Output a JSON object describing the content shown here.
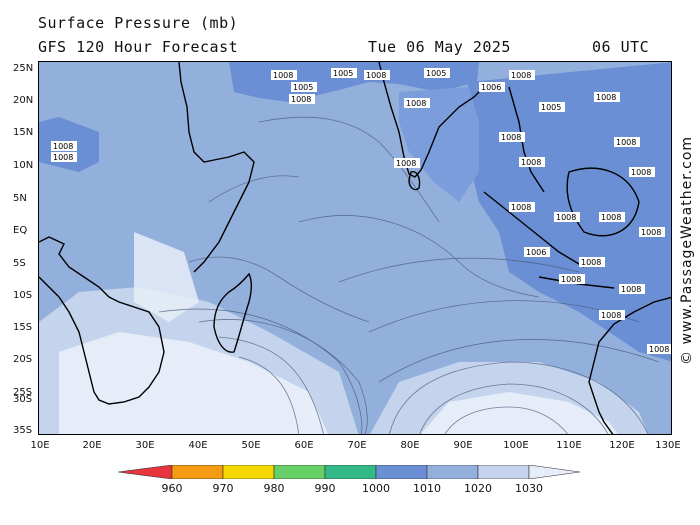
{
  "header": {
    "title": "Surface Pressure (mb)",
    "subtitle": "GFS 120 Hour Forecast",
    "date": "Tue 06 May 2025",
    "time": "06 UTC"
  },
  "watermark": "© www.PassageWeather.com",
  "lat_labels": [
    "25N",
    "20N",
    "15N",
    "10N",
    "5N",
    "EQ",
    "5S",
    "10S",
    "15S",
    "20S",
    "25S",
    "30S",
    "35S"
  ],
  "lon_labels": [
    "10E",
    "20E",
    "30E",
    "40E",
    "50E",
    "60E",
    "70E",
    "80E",
    "90E",
    "100E",
    "110E",
    "120E",
    "130E"
  ],
  "legend": {
    "labels": [
      "960",
      "970",
      "980",
      "990",
      "1000",
      "1010",
      "1020",
      "1030"
    ],
    "colors": [
      "#e8343c",
      "#f39c12",
      "#f5d800",
      "#66d066",
      "#33b888",
      "#6a8fd4",
      "#93b0dc",
      "#c4d4ec",
      "#e7edf8"
    ]
  },
  "colors": {
    "low_1005": "#6a8fd4",
    "ambient_1010": "#93b0dc",
    "high_1020": "#c4d4ec",
    "high_1025": "#e7edf8",
    "land_outline": "#000000"
  },
  "isobar_labels": {
    "l1005": "1005",
    "l1006": "1006",
    "l1008": "1008"
  }
}
